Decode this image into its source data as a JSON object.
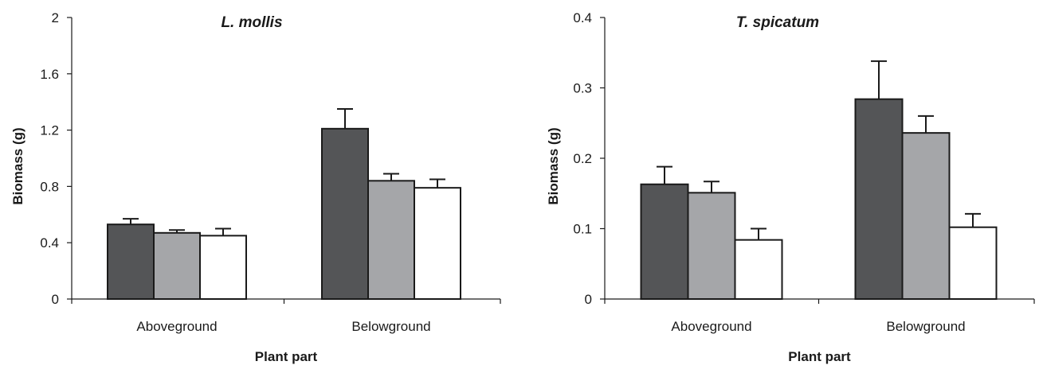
{
  "chart_data": [
    {
      "type": "bar",
      "title": "L. mollis",
      "xlabel": "Plant part",
      "ylabel": "Biomass (g)",
      "ylim": [
        0,
        2
      ],
      "yticks": [
        "0",
        "0.4",
        "0.8",
        "1.2",
        "1.6",
        "2"
      ],
      "ytick_values": [
        0,
        0.4,
        0.8,
        1.2,
        1.6,
        2
      ],
      "categories": [
        "Aboveground",
        "Belowground"
      ],
      "legend": false,
      "grid": false,
      "series": [
        {
          "color": "#545557",
          "values": [
            0.53,
            1.21
          ],
          "errors": [
            0.04,
            0.14
          ]
        },
        {
          "color": "#a5a6a9",
          "values": [
            0.47,
            0.84
          ],
          "errors": [
            0.02,
            0.05
          ]
        },
        {
          "color": "#ffffff",
          "values": [
            0.45,
            0.79
          ],
          "errors": [
            0.05,
            0.06
          ]
        }
      ]
    },
    {
      "type": "bar",
      "title": "T. spicatum",
      "xlabel": "Plant part",
      "ylabel": "Biomass (g)",
      "ylim": [
        0,
        0.4
      ],
      "yticks": [
        "0",
        "0.1",
        "0.2",
        "0.3",
        "0.4"
      ],
      "ytick_values": [
        0,
        0.1,
        0.2,
        0.3,
        0.4
      ],
      "categories": [
        "Aboveground",
        "Belowground"
      ],
      "legend": false,
      "grid": false,
      "series": [
        {
          "color": "#545557",
          "values": [
            0.163,
            0.284
          ],
          "errors": [
            0.025,
            0.054
          ]
        },
        {
          "color": "#a5a6a9",
          "values": [
            0.151,
            0.236
          ],
          "errors": [
            0.016,
            0.024
          ]
        },
        {
          "color": "#ffffff",
          "values": [
            0.084,
            0.102
          ],
          "errors": [
            0.016,
            0.019
          ]
        }
      ]
    }
  ]
}
